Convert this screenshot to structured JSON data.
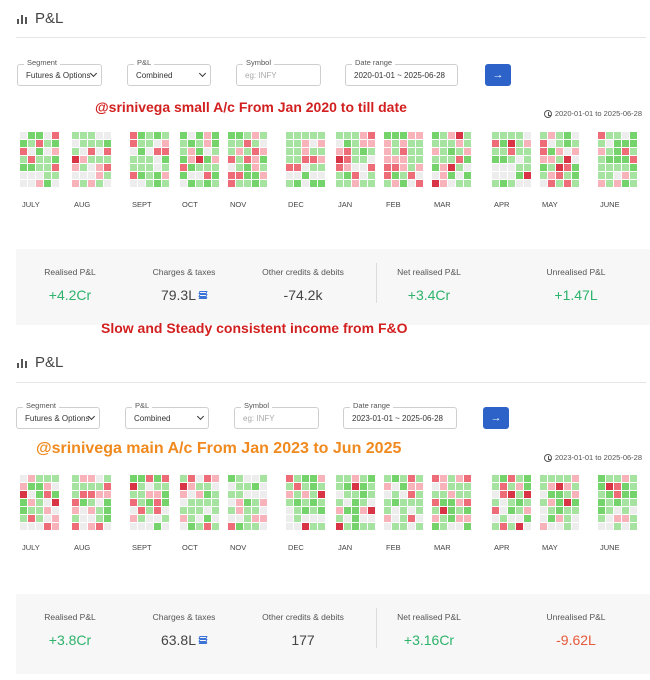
{
  "panels": [
    {
      "title": "P&L",
      "filters": {
        "segment_label": "Segment",
        "segment_value": "Futures & Options",
        "pnl_label": "P&L",
        "pnl_value": "Combined",
        "symbol_label": "Symbol",
        "symbol_placeholder": "eg: INFY",
        "daterange_label": "Date range",
        "daterange_value": "2020-01-01 ~ 2025-06-28",
        "go_label": "→"
      },
      "overlay": "@srinivega small A/c From Jan 2020 to till date",
      "range_text": "2020-01-01 to 2025-06-28",
      "months": [
        "JULY",
        "AUG",
        "SEPT",
        "OCT",
        "NOV",
        "DEC",
        "JAN",
        "FEB",
        "MAR",
        "APR",
        "MAY",
        "JUNE"
      ],
      "stats": [
        {
          "label": "Realised P&L",
          "value": "+4.2Cr",
          "tone": "green"
        },
        {
          "label": "Charges & taxes",
          "value": "79.3L",
          "tone": "neutral",
          "icon": "layers-icon"
        },
        {
          "label": "Other credits & debits",
          "value": "-74.2k",
          "tone": "neutral"
        },
        {
          "label": "Net realised P&L",
          "value": "+3.4Cr",
          "tone": "green"
        },
        {
          "label": "Unrealised P&L",
          "value": "+1.47L",
          "tone": "green"
        }
      ],
      "note": "Slow and Steady consistent income from F&O"
    },
    {
      "title": "P&L",
      "filters": {
        "segment_label": "Segment",
        "segment_value": "Futures & Options",
        "pnl_label": "P&L",
        "pnl_value": "Combined",
        "symbol_label": "Symbol",
        "symbol_placeholder": "eg: INFY",
        "daterange_label": "Date range",
        "daterange_value": "2023-01-01 ~ 2025-06-28",
        "go_label": "→"
      },
      "overlay": "@srinivega main A/c From Jan 2023 to Jun 2025",
      "range_text": "2023-01-01 to 2025-06-28",
      "months": [
        "JULY",
        "AUG",
        "SEPT",
        "OCT",
        "NOV",
        "DEC",
        "JAN",
        "FEB",
        "MAR",
        "APR",
        "MAY",
        "JUNE"
      ],
      "stats": [
        {
          "label": "Realised P&L",
          "value": "+3.8Cr",
          "tone": "green"
        },
        {
          "label": "Charges & taxes",
          "value": "63.8L",
          "tone": "neutral",
          "icon": "layers-icon"
        },
        {
          "label": "Other credits & debits",
          "value": "177",
          "tone": "neutral"
        },
        {
          "label": "Net realised P&L",
          "value": "+3.16Cr",
          "tone": "green"
        },
        {
          "label": "Unrealised P&L",
          "value": "-9.62L",
          "tone": "red"
        }
      ]
    }
  ],
  "heatmap_levels": [
    "no-trade",
    "profit-small",
    "profit-large",
    "loss-small",
    "loss-medium",
    "loss-large"
  ],
  "colors": {
    "accent": "#2d63c8",
    "profit": "#74d36a",
    "profit_light": "#a6e3a1",
    "loss_light": "#f7b3b9",
    "loss": "#ee6b78",
    "loss_dark": "#d93445",
    "empty": "#ededed",
    "positive_text": "#2db36b",
    "negative_text": "#e65a3b",
    "overlay_red": "#d21f1f",
    "overlay_orange": "#f0891e"
  }
}
